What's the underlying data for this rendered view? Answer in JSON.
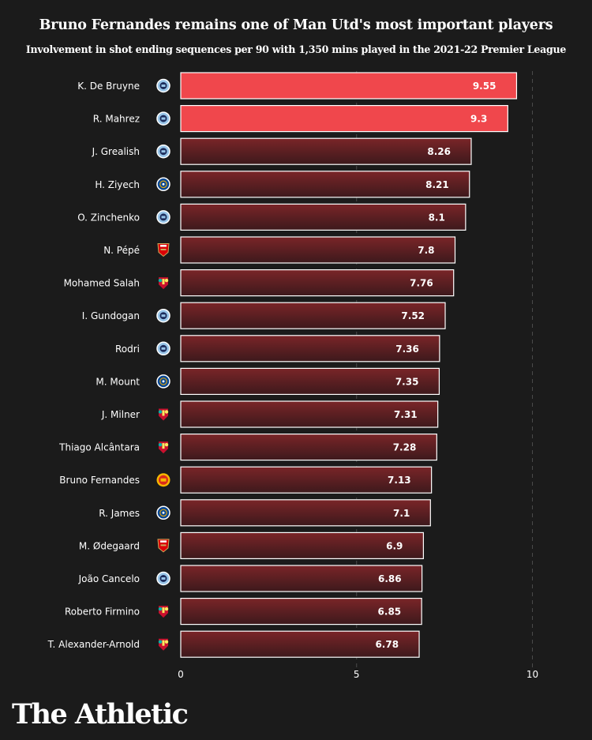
{
  "title": "Bruno Fernandes remains one of Man Utd's most important players",
  "subtitle": "Involvement in shot ending sequences per 90 with 1,350 mins played in the 2021-22 Premier League",
  "brand": "The Athletic",
  "colors": {
    "background": "#1b1b1b",
    "highlight": "#f0474c",
    "bar_top": "#7a2528",
    "bar_bottom": "#3d191c",
    "grid": "#4a4a4a"
  },
  "chart_data": {
    "type": "bar",
    "orientation": "horizontal",
    "categories": [
      "K. De Bruyne",
      "R. Mahrez",
      "J. Grealish",
      "H. Ziyech",
      "O. Zinchenko",
      "N. Pépé",
      "Mohamed Salah",
      "I. Gundogan",
      "Rodri",
      "M. Mount",
      "J. Milner",
      "Thiago Alcântara",
      "Bruno Fernandes",
      "R. James",
      "M. Ødegaard",
      "João Cancelo",
      "Roberto Firmino",
      "T. Alexander-Arnold"
    ],
    "values": [
      9.55,
      9.3,
      8.26,
      8.21,
      8.1,
      7.8,
      7.76,
      7.52,
      7.36,
      7.35,
      7.31,
      7.28,
      7.13,
      7.1,
      6.9,
      6.86,
      6.85,
      6.78
    ],
    "value_labels": [
      "9.55",
      "9.3",
      "8.26",
      "8.21",
      "8.1",
      "7.8",
      "7.76",
      "7.52",
      "7.36",
      "7.35",
      "7.31",
      "7.28",
      "7.13",
      "7.1",
      "6.9",
      "6.86",
      "6.85",
      "6.78"
    ],
    "clubs": [
      "mancity",
      "mancity",
      "mancity",
      "chelsea",
      "mancity",
      "arsenal",
      "liverpool",
      "mancity",
      "mancity",
      "chelsea",
      "liverpool",
      "liverpool",
      "manutd",
      "chelsea",
      "arsenal",
      "mancity",
      "liverpool",
      "liverpool"
    ],
    "highlighted": [
      true,
      true,
      false,
      false,
      false,
      false,
      false,
      false,
      false,
      false,
      false,
      false,
      false,
      false,
      false,
      false,
      false,
      false
    ],
    "xlim": [
      0,
      10
    ],
    "xticks": [
      0,
      5,
      10
    ],
    "xtick_labels": [
      "0",
      "5",
      "10"
    ],
    "grid": true,
    "legend": "none"
  }
}
